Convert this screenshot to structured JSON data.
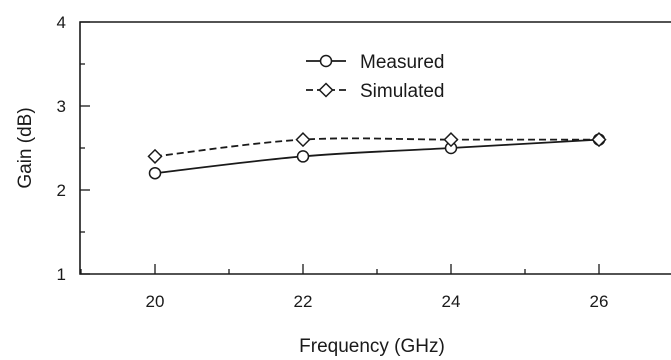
{
  "chart_data": {
    "type": "line",
    "xlabel": "Frequency (GHz)",
    "ylabel": "Gain (dB)",
    "xlim": [
      19,
      27
    ],
    "ylim": [
      1,
      4
    ],
    "x_ticks": [
      20,
      22,
      24,
      26
    ],
    "y_ticks": [
      1,
      2,
      3,
      4
    ],
    "x": [
      20,
      22,
      24,
      26
    ],
    "series": [
      {
        "name": "Measured",
        "values": [
          2.2,
          2.4,
          2.5,
          2.6
        ],
        "marker": "circle",
        "line": "solid",
        "color": "#1a1a1a"
      },
      {
        "name": "Simulated",
        "values": [
          2.4,
          2.6,
          2.6,
          2.6
        ],
        "marker": "diamond",
        "line": "dashed",
        "color": "#1a1a1a"
      }
    ],
    "legend_position": "top-center",
    "grid": false
  }
}
